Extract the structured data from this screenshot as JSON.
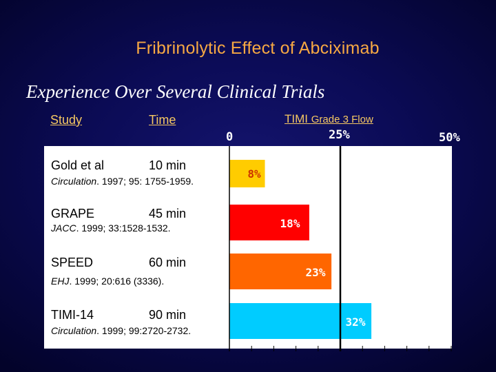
{
  "title": "Fribrinolytic Effect of Abciximab",
  "subtitle": "Experience Over Several Clinical Trials",
  "headers": {
    "study": "Study",
    "time": "Time",
    "metric_main": "TIMI",
    "metric_sub": "Grade 3 Flow"
  },
  "rows": [
    {
      "study": "Gold et al",
      "time": "10 min",
      "journal": "Circulation",
      "citation": ". 1997; 95: 1755-1959."
    },
    {
      "study": "GRAPE",
      "time": "45 min",
      "journal": "JACC",
      "citation": ". 1999; 33:1528-1532."
    },
    {
      "study": "SPEED",
      "time": "60 min",
      "journal": "EHJ",
      "citation": ". 1999; 20:616 (3336)."
    },
    {
      "study": "TIMI-14",
      "time": "90 min",
      "journal": "Circulation",
      "citation": ". 1999; 99:2720-2732."
    }
  ],
  "chart_data": {
    "type": "bar",
    "orientation": "horizontal",
    "ylabel": "TIMI Grade 3 Flow",
    "categories": [
      "Gold et al",
      "GRAPE",
      "SPEED",
      "TIMI-14"
    ],
    "values": [
      8,
      18,
      23,
      32
    ],
    "value_labels": [
      "8%",
      "18%",
      "23%",
      "32%"
    ],
    "xlim": [
      0,
      50
    ],
    "tick_labels": [
      "0",
      "25%",
      "50%"
    ],
    "reference_line": 25,
    "colors": [
      "#ffcc00",
      "#ff0000",
      "#ff6600",
      "#00ccff"
    ],
    "label_colors": [
      "#cc3300",
      "#ffffff",
      "#ffffff",
      "#ffffff"
    ]
  }
}
